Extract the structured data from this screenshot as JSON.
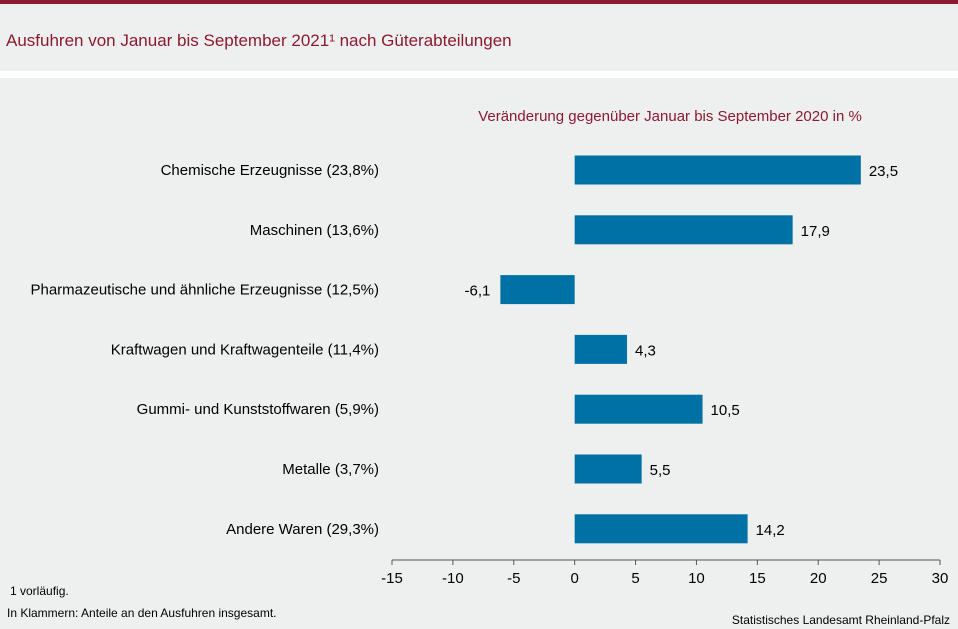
{
  "header": {
    "title": "Ausfuhren von Januar bis September 2021¹ nach Güterabteilungen"
  },
  "footer": {
    "footnote": "1 vorläufig.",
    "note": "In Klammern: Anteile an den Ausfuhren insgesamt.",
    "source": "Statistisches Landesamt Rheinland-Pfalz"
  },
  "colors": {
    "accent": "#8b1a32",
    "bar": "#0071a4",
    "background": "#eef0ef"
  },
  "chart_data": {
    "type": "bar",
    "orientation": "horizontal",
    "title": "Veränderung gegenüber Januar bis September 2020 in %",
    "categories": [
      "Chemische Erzeugnisse (23,8%)",
      "Maschinen (13,6%)",
      "Pharmazeutische und ähnliche Erzeugnisse (12,5%)",
      "Kraftwagen und Kraftwagenteile (11,4%)",
      "Gummi- und Kunststoffwaren (5,9%)",
      "Metalle (3,7%)",
      "Andere Waren (29,3%)"
    ],
    "values": [
      23.5,
      17.9,
      -6.1,
      4.3,
      10.5,
      5.5,
      14.2
    ],
    "value_labels": [
      "23,5",
      "17,9",
      "-6,1",
      "4,3",
      "10,5",
      "5,5",
      "14,2"
    ],
    "xlim": [
      -15,
      30
    ],
    "xticks": [
      -15,
      -10,
      -5,
      0,
      5,
      10,
      15,
      20,
      25,
      30
    ],
    "grid": false,
    "legend": "none"
  }
}
